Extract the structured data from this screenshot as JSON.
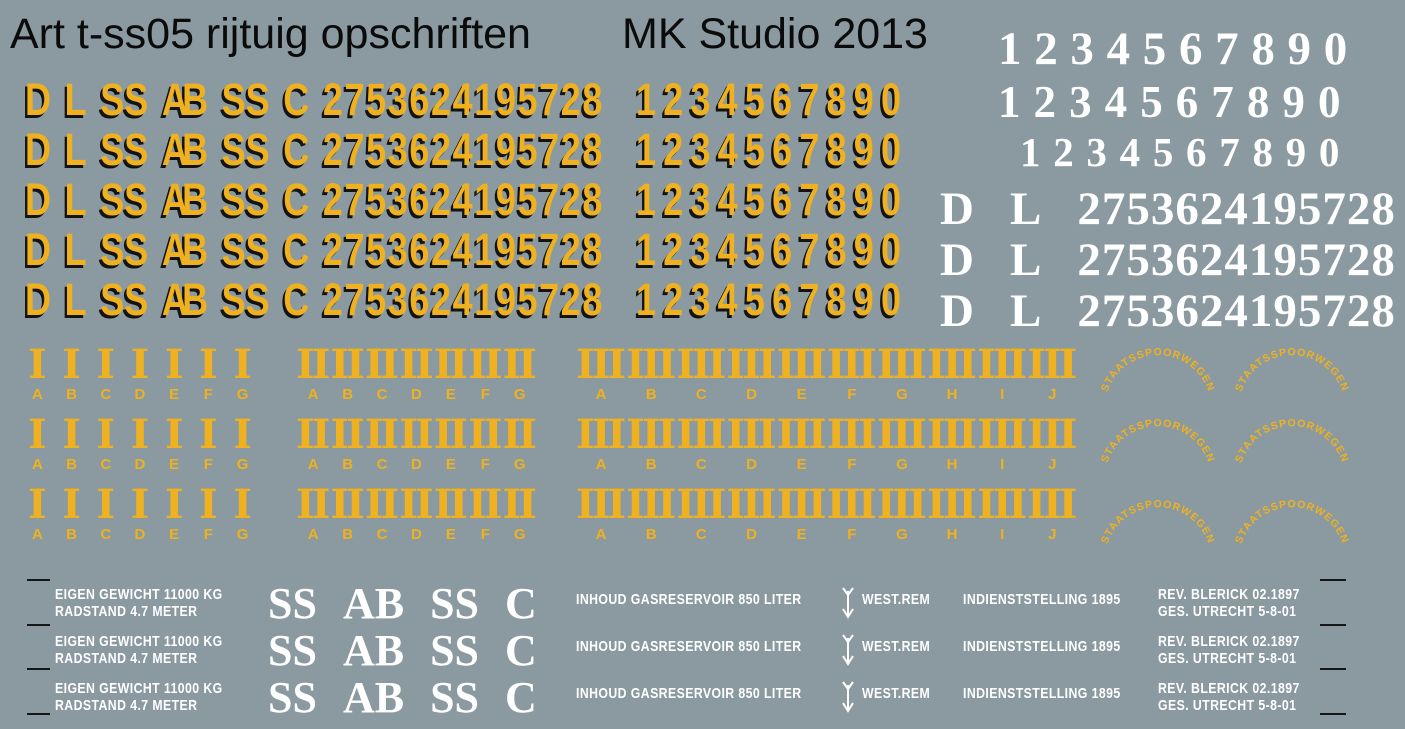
{
  "header": {
    "title": "Art t-ss05 rijtuig opschriften",
    "studio": "MK Studio 2013"
  },
  "colors": {
    "background": "#8A9AA0",
    "yellow": "#EFB11F",
    "white": "#FFFFFF",
    "shadow_black": "#131313"
  },
  "white_digits": {
    "row": "1234567890"
  },
  "yellow_marks": {
    "d": "D",
    "l": "L",
    "ss": "SS",
    "ab": "AB",
    "ss2": "SS",
    "c": "C",
    "number": "2753624195728",
    "digits": "1234567890"
  },
  "white_marks": {
    "d": "D",
    "l": "L",
    "number": "2753624195728"
  },
  "classes": {
    "groups": [
      {
        "numeral": "I",
        "letters": [
          "A",
          "B",
          "C",
          "D",
          "E",
          "F",
          "G"
        ]
      },
      {
        "numeral": "II",
        "letters": [
          "A",
          "B",
          "C",
          "D",
          "E",
          "F",
          "G"
        ]
      },
      {
        "numeral": "III",
        "letters": [
          "A",
          "B",
          "C",
          "D",
          "E",
          "F",
          "G",
          "H",
          "I",
          "J"
        ]
      }
    ]
  },
  "arc": {
    "text": "STAATSSPOORWEGEN"
  },
  "bottom": {
    "weight_line1": "EIGEN GEWICHT 11000 KG",
    "weight_line2": "RADSTAND 4.7 METER",
    "class_parts": [
      "SS",
      "AB",
      "SS",
      "C"
    ],
    "gas": "INHOUD GASRESERVOIR 850 LITER",
    "brake_icon": "westinghouse-brake-arrow-icon",
    "brake_label": "WEST.REM",
    "service": "INDIENSTSTELLING 1895",
    "rev_line1": "REV. BLERICK 02.1897",
    "rev_line2": "GES. UTRECHT 5-8-01"
  }
}
